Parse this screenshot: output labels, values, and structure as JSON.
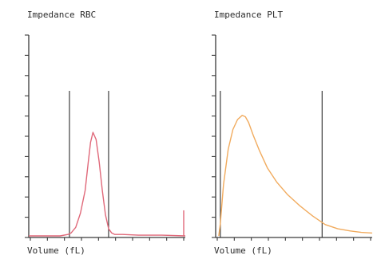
{
  "chart_data": [
    {
      "type": "line",
      "title": "Impedance RBC",
      "xlabel": "Volume (fL)",
      "ylabel": "",
      "grid": false,
      "color": "#e0697a",
      "xlim": [
        0,
        100
      ],
      "ylim": [
        0,
        100
      ],
      "gates": [
        26,
        51
      ],
      "series": [
        {
          "x": [
            0,
            20,
            25,
            27,
            30,
            33,
            36,
            38,
            39.5,
            41,
            43,
            45,
            47,
            49,
            51,
            53,
            55,
            60,
            70,
            85,
            100
          ],
          "y": [
            0,
            0,
            1,
            2,
            6,
            16,
            32,
            52,
            66,
            73,
            68,
            52,
            32,
            15,
            5,
            2,
            1,
            1,
            0.5,
            0.5,
            0
          ]
        }
      ],
      "end_spike": 18
    },
    {
      "type": "line",
      "title": "Impedance PLT",
      "xlabel": "Volume (fL)",
      "ylabel": "",
      "grid": false,
      "color": "#f1ab5e",
      "xlim": [
        0,
        100
      ],
      "ylim": [
        0,
        100
      ],
      "gates": [
        3,
        68
      ],
      "series": [
        {
          "x": [
            2,
            3,
            5,
            8,
            11,
            14,
            17,
            19,
            21,
            24,
            28,
            33,
            39,
            46,
            54,
            62,
            70,
            78,
            86,
            93,
            100
          ],
          "y": [
            0,
            9,
            36,
            61,
            75,
            82,
            85,
            84,
            80,
            71,
            60,
            48,
            38,
            29,
            21,
            14,
            8,
            5,
            3.5,
            2.5,
            2
          ]
        }
      ]
    }
  ]
}
